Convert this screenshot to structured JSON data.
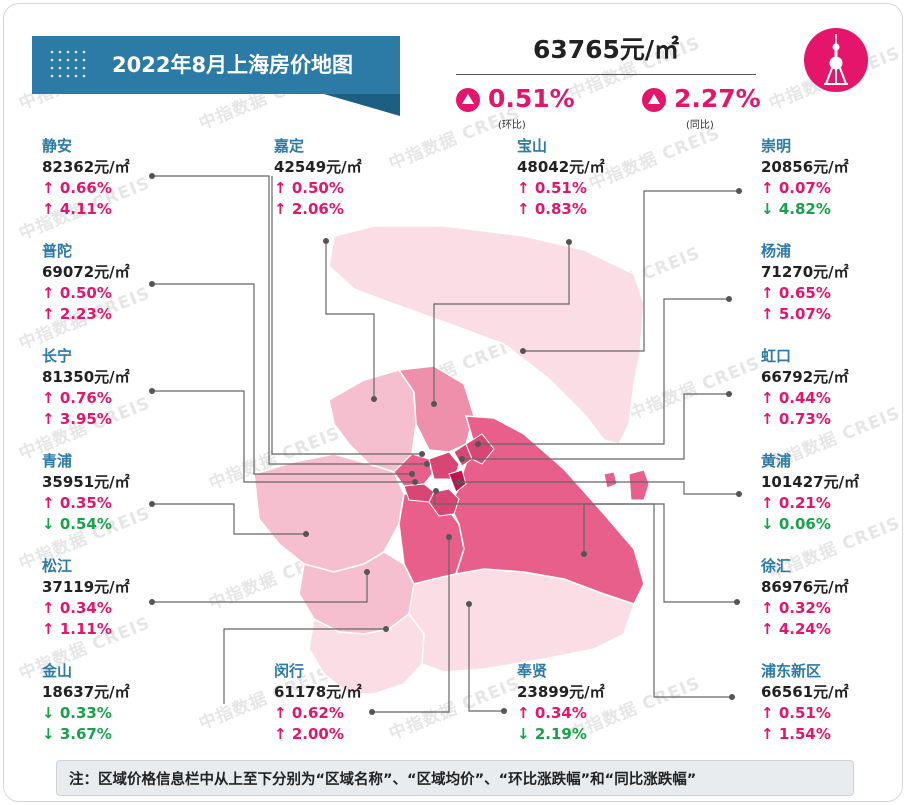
{
  "title": "2022年8月上海房价地图",
  "average_price": "63765元/㎡",
  "mom_change": "0.51%",
  "mom_label": "(环比)",
  "yoy_change": "2.27%",
  "yoy_label": "(同比)",
  "watermark": "中指数据 CREIS",
  "colors": {
    "brand_blue": "#2c7aa6",
    "up_red": "#e4156b",
    "down_green": "#17a34a",
    "map_lightest": "#fbdde5",
    "map_light": "#f6bfcf",
    "map_mid": "#ee8fac",
    "map_strong": "#e85f8b",
    "map_deep": "#d01c5c"
  },
  "districts": {
    "jingan": {
      "name": "静安",
      "price": "82362元/㎡",
      "mom": "0.66%",
      "mom_dir": "↑",
      "yoy": "4.11%",
      "yoy_dir": "↑"
    },
    "jiading": {
      "name": "嘉定",
      "price": "42549元/㎡",
      "mom": "0.50%",
      "mom_dir": "↑",
      "yoy": "2.06%",
      "yoy_dir": "↑"
    },
    "baoshan": {
      "name": "宝山",
      "price": "48042元/㎡",
      "mom": "0.51%",
      "mom_dir": "↑",
      "yoy": "0.83%",
      "yoy_dir": "↑"
    },
    "chongming": {
      "name": "崇明",
      "price": "20856元/㎡",
      "mom": "0.07%",
      "mom_dir": "↑",
      "yoy": "4.82%",
      "yoy_dir": "↓"
    },
    "putuo": {
      "name": "普陀",
      "price": "69072元/㎡",
      "mom": "0.50%",
      "mom_dir": "↑",
      "yoy": "2.23%",
      "yoy_dir": "↑"
    },
    "yangpu": {
      "name": "杨浦",
      "price": "71270元/㎡",
      "mom": "0.65%",
      "mom_dir": "↑",
      "yoy": "5.07%",
      "yoy_dir": "↑"
    },
    "changning": {
      "name": "长宁",
      "price": "81350元/㎡",
      "mom": "0.76%",
      "mom_dir": "↑",
      "yoy": "3.95%",
      "yoy_dir": "↑"
    },
    "hongkou": {
      "name": "虹口",
      "price": "66792元/㎡",
      "mom": "0.44%",
      "mom_dir": "↑",
      "yoy": "0.73%",
      "yoy_dir": "↑"
    },
    "qingpu": {
      "name": "青浦",
      "price": "35951元/㎡",
      "mom": "0.35%",
      "mom_dir": "↑",
      "yoy": "0.54%",
      "yoy_dir": "↓"
    },
    "huangpu": {
      "name": "黄浦",
      "price": "101427元/㎡",
      "mom": "0.21%",
      "mom_dir": "↑",
      "yoy": "0.06%",
      "yoy_dir": "↓"
    },
    "songjiang": {
      "name": "松江",
      "price": "37119元/㎡",
      "mom": "0.34%",
      "mom_dir": "↑",
      "yoy": "1.11%",
      "yoy_dir": "↑"
    },
    "xuhui": {
      "name": "徐汇",
      "price": "86976元/㎡",
      "mom": "0.32%",
      "mom_dir": "↑",
      "yoy": "4.24%",
      "yoy_dir": "↑"
    },
    "jinshan": {
      "name": "金山",
      "price": "18637元/㎡",
      "mom": "0.33%",
      "mom_dir": "↓",
      "yoy": "3.67%",
      "yoy_dir": "↓"
    },
    "minhang": {
      "name": "闵行",
      "price": "61178元/㎡",
      "mom": "0.62%",
      "mom_dir": "↑",
      "yoy": "2.00%",
      "yoy_dir": "↑"
    },
    "fengxian": {
      "name": "奉贤",
      "price": "23899元/㎡",
      "mom": "0.34%",
      "mom_dir": "↑",
      "yoy": "2.19%",
      "yoy_dir": "↓"
    },
    "pudong": {
      "name": "浦东新区",
      "price": "66561元/㎡",
      "mom": "0.51%",
      "mom_dir": "↑",
      "yoy": "1.54%",
      "yoy_dir": "↑"
    }
  },
  "note": "注：区域价格信息栏中从上至下分别为“区域名称”、“区域均价”、“环比涨跌幅”和“同比涨跌幅”"
}
